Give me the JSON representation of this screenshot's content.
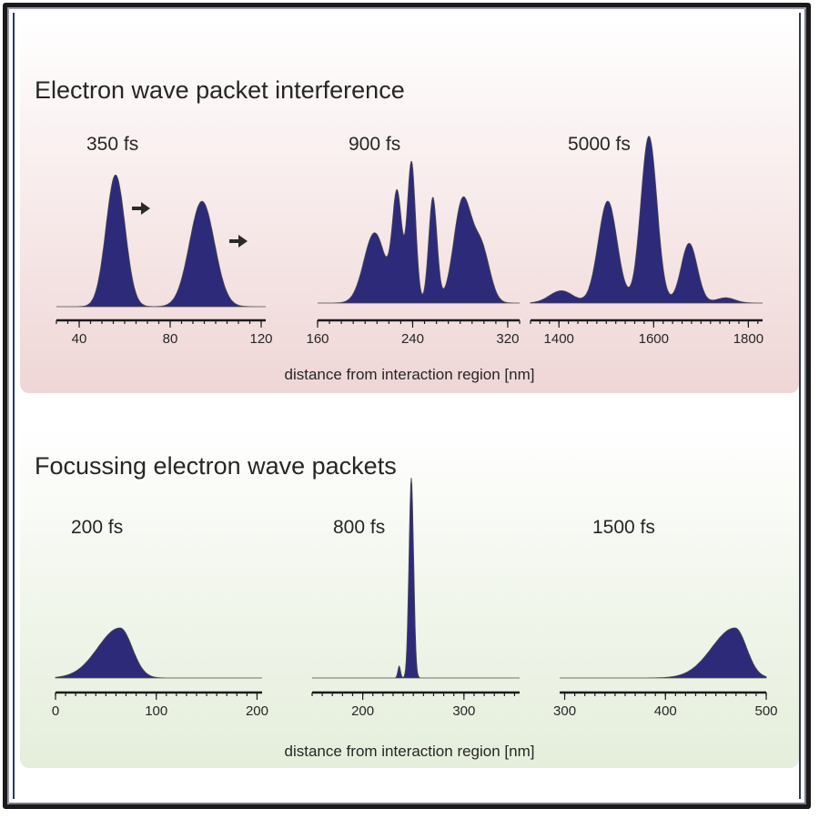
{
  "colors": {
    "packet_fill": "#2d2a7a",
    "axis": "#1a1a1a",
    "top_panel_tint": "#efd6d6",
    "bottom_panel_tint": "#e5eedb"
  },
  "top": {
    "title": "Electron wave packet interference",
    "axis_title": "distance from interaction region [nm]",
    "arrow_icon_count": 2
  },
  "bottom": {
    "title": "Focussing electron wave packets",
    "axis_title": "distance from interaction region [nm]"
  },
  "chart_data": [
    {
      "type": "area",
      "group": "top",
      "label": "350 fs",
      "xlim": [
        30,
        122
      ],
      "ticks": [
        40,
        80,
        120
      ],
      "peaks": [
        {
          "x": 56,
          "h": 0.75,
          "w": 4.2
        },
        {
          "x": 94,
          "h": 0.6,
          "w": 5.5
        }
      ],
      "x": [
        34,
        48,
        52,
        56,
        60,
        64,
        70,
        80,
        86,
        90,
        94,
        98,
        102,
        110,
        120
      ],
      "y": [
        0.0,
        0.11,
        0.43,
        0.75,
        0.43,
        0.11,
        0.01,
        0.02,
        0.18,
        0.46,
        0.6,
        0.46,
        0.18,
        0.01,
        0.0
      ]
    },
    {
      "type": "area",
      "group": "top",
      "label": "900 fs",
      "xlim": [
        160,
        330
      ],
      "ticks": [
        160,
        240,
        320
      ],
      "peaks": [
        {
          "x": 208,
          "h": 0.4,
          "w": 9
        },
        {
          "x": 227,
          "h": 0.6,
          "w": 4
        },
        {
          "x": 239,
          "h": 0.8,
          "w": 3.5
        },
        {
          "x": 257,
          "h": 0.6,
          "w": 3.5
        },
        {
          "x": 282,
          "h": 0.58,
          "w": 7.5
        },
        {
          "x": 298,
          "h": 0.3,
          "w": 7
        }
      ],
      "x": [
        180,
        200,
        212,
        227,
        239,
        248,
        257,
        266,
        282,
        298,
        310
      ],
      "y": [
        0.02,
        0.28,
        0.4,
        0.62,
        0.8,
        0.08,
        0.6,
        0.35,
        0.58,
        0.3,
        0.02
      ]
    },
    {
      "type": "area",
      "group": "top",
      "label": "5000 fs",
      "xlim": [
        1340,
        1830
      ],
      "ticks": [
        1400,
        1600,
        1800
      ],
      "peaks": [
        {
          "x": 1405,
          "h": 0.07,
          "w": 25
        },
        {
          "x": 1503,
          "h": 0.58,
          "w": 20
        },
        {
          "x": 1590,
          "h": 0.95,
          "w": 17
        },
        {
          "x": 1675,
          "h": 0.34,
          "w": 17
        },
        {
          "x": 1752,
          "h": 0.03,
          "w": 20
        }
      ],
      "x": [
        1340,
        1405,
        1450,
        1503,
        1545,
        1590,
        1635,
        1675,
        1715,
        1752,
        1800
      ],
      "y": [
        0.0,
        0.07,
        0.01,
        0.58,
        0.01,
        0.95,
        0.01,
        0.34,
        0.01,
        0.03,
        0.0
      ]
    },
    {
      "type": "area",
      "group": "bottom",
      "label": "200 fs",
      "xlim": [
        0,
        205
      ],
      "ticks": [
        0,
        100,
        200
      ],
      "peaks": [
        {
          "x": 64,
          "h": 0.25,
          "w": 22,
          "asym": 0.55
        }
      ],
      "x": [
        12,
        40,
        55,
        64,
        75,
        85,
        97
      ],
      "y": [
        0.0,
        0.1,
        0.21,
        0.25,
        0.2,
        0.06,
        0.0
      ]
    },
    {
      "type": "area",
      "group": "bottom",
      "label": "800 fs",
      "xlim": [
        150,
        355
      ],
      "ticks": [
        200,
        300
      ],
      "peaks": [
        {
          "x": 248,
          "h": 1.0,
          "w": 2.3
        },
        {
          "x": 236,
          "h": 0.06,
          "w": 1.3
        }
      ],
      "x": [
        230,
        236,
        240,
        244,
        248,
        252,
        256,
        262
      ],
      "y": [
        0.0,
        0.06,
        0.0,
        0.22,
        1.0,
        0.22,
        0.0,
        0.0
      ]
    },
    {
      "type": "area",
      "group": "bottom",
      "label": "1500 fs",
      "xlim": [
        295,
        500
      ],
      "ticks": [
        300,
        400,
        500
      ],
      "peaks": [
        {
          "x": 469,
          "h": 0.25,
          "w": 23,
          "asym": 0.5
        }
      ],
      "x": [
        405,
        430,
        450,
        469,
        478,
        486,
        495
      ],
      "y": [
        0.0,
        0.06,
        0.16,
        0.25,
        0.2,
        0.06,
        0.0
      ]
    }
  ]
}
